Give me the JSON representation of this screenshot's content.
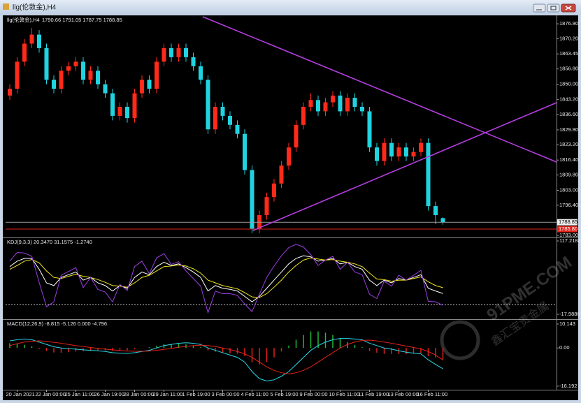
{
  "window_title": "llg(伦敦金),H4",
  "watermark": {
    "site": "91PME.COM",
    "name": "鑫汇宝贵金属"
  },
  "chart_data": [
    {
      "type": "candlestick",
      "title": "llg(伦敦金),H4",
      "ohlc_label": "1790.66 1791.05 1787.75 1788.85",
      "categories": [
        null,
        "20 Jan 2021",
        null,
        null,
        null,
        "22 Jan 00:00",
        null,
        null,
        null,
        "25 Jan 11:00",
        null,
        null,
        null,
        "26 Jan 19:00",
        null,
        null,
        null,
        "28 Jan 00:00",
        null,
        null,
        null,
        "29 Jan 11:00",
        null,
        null,
        null,
        "1 Feb 19:00",
        null,
        null,
        null,
        "3 Feb 00:00",
        null,
        null,
        null,
        "4 Feb 11:00",
        null,
        null,
        null,
        "5 Feb 19:00",
        null,
        null,
        null,
        "9 Feb 00:00",
        null,
        null,
        null,
        "10 Feb 11:00",
        null,
        null,
        null,
        "11 Feb 19:00",
        null,
        null,
        null,
        "13 Feb 00:00",
        null,
        null,
        null,
        "16 Feb 11:00",
        null,
        null
      ],
      "open": [
        1845,
        1848,
        1860,
        1868,
        1872,
        1866,
        1852,
        1848,
        1856,
        1858,
        1860,
        1852,
        1856,
        1850,
        1846,
        1836,
        1840,
        1835,
        1846,
        1852,
        1848,
        1860,
        1866,
        1862,
        1866,
        1862,
        1858,
        1852,
        1830,
        1840,
        1836,
        1832,
        1828,
        1812,
        1786,
        1792,
        1800,
        1806,
        1814,
        1822,
        1832,
        1840,
        1843,
        1838,
        1842,
        1845,
        1838,
        1844,
        1840,
        1838,
        1822,
        1816,
        1824,
        1818,
        1822,
        1818,
        1820,
        1824,
        1796,
        1790.66
      ],
      "high": [
        1850,
        1862,
        1870,
        1875,
        1874,
        1868,
        1854,
        1858,
        1860,
        1862,
        1862,
        1858,
        1858,
        1852,
        1848,
        1842,
        1842,
        1848,
        1854,
        1854,
        1862,
        1868,
        1868,
        1868,
        1868,
        1864,
        1860,
        1854,
        1842,
        1842,
        1838,
        1834,
        1830,
        1814,
        1794,
        1802,
        1808,
        1816,
        1824,
        1834,
        1842,
        1846,
        1845,
        1844,
        1847,
        1847,
        1846,
        1846,
        1842,
        1840,
        1824,
        1826,
        1826,
        1824,
        1824,
        1822,
        1826,
        1826,
        1798,
        1791.05
      ],
      "low": [
        1843,
        1846,
        1858,
        1866,
        1864,
        1850,
        1846,
        1846,
        1854,
        1856,
        1850,
        1850,
        1848,
        1844,
        1834,
        1834,
        1833,
        1833,
        1844,
        1846,
        1846,
        1858,
        1860,
        1860,
        1860,
        1856,
        1850,
        1828,
        1828,
        1834,
        1830,
        1826,
        1810,
        1784,
        1784,
        1790,
        1798,
        1804,
        1812,
        1820,
        1830,
        1838,
        1836,
        1836,
        1840,
        1836,
        1836,
        1838,
        1836,
        1820,
        1814,
        1814,
        1816,
        1816,
        1816,
        1816,
        1818,
        1794,
        1788,
        1787.75
      ],
      "close": [
        1848,
        1860,
        1868,
        1872,
        1866,
        1852,
        1848,
        1856,
        1858,
        1860,
        1852,
        1856,
        1850,
        1846,
        1836,
        1840,
        1835,
        1846,
        1852,
        1848,
        1860,
        1866,
        1862,
        1866,
        1862,
        1858,
        1852,
        1830,
        1840,
        1836,
        1832,
        1828,
        1812,
        1786,
        1792,
        1800,
        1806,
        1814,
        1822,
        1832,
        1840,
        1843,
        1838,
        1842,
        1845,
        1838,
        1844,
        1840,
        1838,
        1822,
        1816,
        1824,
        1818,
        1822,
        1818,
        1820,
        1824,
        1796,
        1792,
        1788.85
      ],
      "up_color": "#ff2a1a",
      "down_color": "#1fd4e0",
      "ylim": [
        1782.1,
        1879.3
      ],
      "yticks": [
        {
          "value": 1876.8,
          "label": "1876.80"
        },
        {
          "value": 1870.2,
          "label": "1870.20"
        },
        1863.45,
        {
          "value": 1856.8,
          "label": "1856.80"
        },
        {
          "value": 1850,
          "label": "1850.00"
        },
        {
          "value": 1843.2,
          "label": "1843.20"
        },
        {
          "value": 1836.6,
          "label": "1836.60"
        },
        {
          "value": 1829.8,
          "label": "1829.80"
        },
        {
          "value": 1823.2,
          "label": "1823.20"
        },
        {
          "value": 1816.4,
          "label": "1816.40"
        },
        {
          "value": 1809.8,
          "label": "1809.80"
        },
        {
          "value": 1803,
          "label": "1803.00"
        },
        {
          "value": 1796.4,
          "label": "1796.40"
        },
        {
          "value": 1783,
          "label": "1783.00"
        }
      ],
      "last_price": 1788.85,
      "alert_line": {
        "value": 1785.8,
        "label": "1785.80"
      }
    },
    {
      "type": "line",
      "title": "KDJ(9,3,3) 20.3470 31.1575 -1.2740",
      "series": [
        {
          "color": "#ffffff",
          "values": [
            70,
            80,
            85,
            85,
            65,
            40,
            35,
            50,
            55,
            60,
            45,
            50,
            40,
            35,
            25,
            35,
            30,
            50,
            60,
            55,
            70,
            78,
            72,
            75,
            68,
            60,
            50,
            25,
            35,
            30,
            28,
            25,
            15,
            5,
            15,
            30,
            45,
            60,
            75,
            85,
            90,
            88,
            80,
            82,
            85,
            75,
            78,
            70,
            65,
            45,
            35,
            45,
            40,
            48,
            45,
            50,
            55,
            30,
            25,
            20.347
          ]
        },
        {
          "color": "#f2e61a",
          "values": [
            65,
            72,
            80,
            83,
            77,
            62,
            50,
            48,
            52,
            56,
            52,
            50,
            46,
            41,
            35,
            34,
            32,
            40,
            50,
            54,
            62,
            70,
            71,
            73,
            71,
            66,
            58,
            45,
            40,
            35,
            32,
            29,
            22,
            14,
            13,
            20,
            32,
            45,
            60,
            72,
            82,
            86,
            84,
            82,
            83,
            80,
            78,
            75,
            70,
            58,
            47,
            46,
            43,
            45,
            45,
            48,
            51,
            42,
            35,
            31.1575
          ]
        },
        {
          "color": "#9b3ee0",
          "values": [
            80,
            96,
            95,
            89,
            41,
            -4,
            5,
            54,
            61,
            68,
            31,
            50,
            28,
            23,
            5,
            37,
            26,
            70,
            80,
            57,
            86,
            94,
            74,
            79,
            62,
            48,
            34,
            -15,
            25,
            20,
            20,
            17,
            1,
            -13,
            19,
            50,
            71,
            90,
            105,
            111,
            106,
            92,
            72,
            82,
            89,
            65,
            78,
            60,
            55,
            19,
            11,
            43,
            34,
            54,
            45,
            54,
            63,
            6,
            5,
            -1.274
          ]
        }
      ],
      "ylim": [
        -25.7,
        121.1
      ],
      "yticks": [
        117.2184,
        -17.9886
      ],
      "hline": 0
    },
    {
      "type": "macd",
      "title": "MACD(12,26,9) -8.815 -5.126 0.000 -4.796",
      "histogram": {
        "pos_color": "#22b83a",
        "neg_color": "#e0231a",
        "values": [
          2,
          1.7,
          1.3,
          0.7,
          -0.5,
          -1.3,
          -1.9,
          -2,
          -1.8,
          -1.5,
          -1.4,
          -1.2,
          -1,
          -1,
          -1.2,
          -1.1,
          -1,
          -0.6,
          -0.1,
          0.3,
          1,
          1.6,
          1.7,
          1.7,
          1.5,
          1,
          0.3,
          -1,
          -1.6,
          -2,
          -2.3,
          -2.5,
          -3.5,
          -6,
          -7,
          -6,
          -4,
          -1.5,
          1,
          3.5,
          5.5,
          7,
          7,
          6.5,
          5.5,
          4,
          2.5,
          1.3,
          0.3,
          -1.3,
          -2,
          -2.5,
          -2.5,
          -2.6,
          -2.6,
          -2.4,
          -2.1,
          -3.5,
          -4,
          -4.796
        ]
      },
      "series": [
        {
          "color": "#28d8e8",
          "values": [
            3,
            3.5,
            3.8,
            3.5,
            2.5,
            1.5,
            0.5,
            0,
            -0.3,
            -0.5,
            -0.8,
            -1,
            -1.2,
            -1.5,
            -2,
            -2.2,
            -2.3,
            -2,
            -1.5,
            -1,
            0,
            1,
            1.5,
            2,
            2.2,
            2,
            1.5,
            0,
            -1,
            -2,
            -3,
            -4,
            -6,
            -10,
            -13,
            -14,
            -13.5,
            -12,
            -10,
            -7,
            -4,
            -1,
            1,
            2.5,
            3.5,
            4,
            4,
            3.8,
            3.5,
            2,
            1,
            0,
            -0.5,
            -1.2,
            -1.8,
            -2.2,
            -2.5,
            -5,
            -7,
            -8.815
          ]
        },
        {
          "color": "#e8231a",
          "values": [
            1,
            1.8,
            2.5,
            2.8,
            3,
            2.8,
            2.4,
            2,
            1.5,
            1,
            0.6,
            0.2,
            -0.2,
            -0.5,
            -0.8,
            -1.1,
            -1.3,
            -1.4,
            -1.4,
            -1.3,
            -1,
            -0.6,
            -0.2,
            0.3,
            0.7,
            1,
            1.2,
            1,
            0.6,
            0,
            -0.7,
            -1.5,
            -2.5,
            -4,
            -6,
            -8,
            -9.5,
            -10.5,
            -11,
            -10.5,
            -9.5,
            -8,
            -6,
            -4,
            -2,
            0,
            1.5,
            2.5,
            3.2,
            3.3,
            3,
            2.5,
            2,
            1.4,
            0.8,
            0.2,
            -0.4,
            -1.5,
            -3,
            -5.126
          ]
        }
      ],
      "ylim": [
        -17.4,
        11.6
      ],
      "yticks": [
        10.143,
        {
          "value": 0,
          "label": "0.00"
        },
        -16.192
      ]
    }
  ]
}
